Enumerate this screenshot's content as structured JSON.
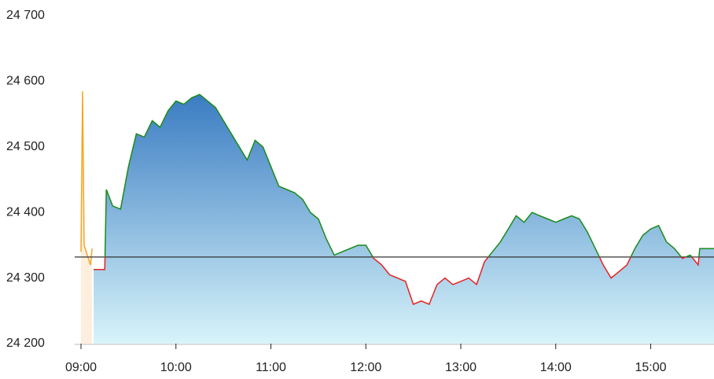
{
  "chart_data": {
    "type": "line",
    "xlim": [
      "09:00",
      "15:40"
    ],
    "xticks": [
      "09:00",
      "10:00",
      "11:00",
      "12:00",
      "13:00",
      "14:00",
      "15:00"
    ],
    "ylim": [
      24200,
      24700
    ],
    "yticks": [
      {
        "value": 24200,
        "label": "24 200"
      },
      {
        "value": 24300,
        "label": "24 300"
      },
      {
        "value": 24400,
        "label": "24 400"
      },
      {
        "value": 24500,
        "label": "24 500"
      },
      {
        "value": 24600,
        "label": "24 600"
      },
      {
        "value": 24700,
        "label": "24 700"
      }
    ],
    "reference_value": 24332,
    "reference_color": "#333333",
    "up_color": "#1a8a1a",
    "down_color": "#e82020",
    "fill_colors": [
      "#3a7cc2",
      "#d8f4fa"
    ],
    "preopen": {
      "color": "#f5a623",
      "fill": "#fdeede",
      "x": [
        "09:00",
        "09:01",
        "09:02",
        "09:04",
        "09:06",
        "09:07"
      ],
      "values": [
        24340,
        24585,
        24350,
        24335,
        24320,
        24345
      ]
    },
    "x": [
      "09:08",
      "09:15",
      "09:16",
      "09:20",
      "09:25",
      "09:30",
      "09:35",
      "09:40",
      "09:45",
      "09:50",
      "09:55",
      "10:00",
      "10:05",
      "10:10",
      "10:15",
      "10:20",
      "10:25",
      "10:30",
      "10:35",
      "10:40",
      "10:45",
      "10:50",
      "10:55",
      "11:00",
      "11:05",
      "11:10",
      "11:15",
      "11:20",
      "11:25",
      "11:30",
      "11:35",
      "11:40",
      "11:45",
      "11:50",
      "11:55",
      "12:00",
      "12:05",
      "12:10",
      "12:15",
      "12:20",
      "12:25",
      "12:30",
      "12:35",
      "12:40",
      "12:45",
      "12:50",
      "12:55",
      "13:00",
      "13:05",
      "13:10",
      "13:15",
      "13:20",
      "13:25",
      "13:30",
      "13:35",
      "13:40",
      "13:45",
      "13:50",
      "13:55",
      "14:00",
      "14:05",
      "14:10",
      "14:15",
      "14:20",
      "14:25",
      "14:30",
      "14:35",
      "14:40",
      "14:45",
      "14:50",
      "14:55",
      "15:00",
      "15:05",
      "15:10",
      "15:15",
      "15:20",
      "15:25",
      "15:30",
      "15:31",
      "15:40"
    ],
    "values": [
      24313,
      24313,
      24435,
      24410,
      24405,
      24470,
      24520,
      24515,
      24540,
      24530,
      24555,
      24570,
      24565,
      24575,
      24580,
      24570,
      24560,
      24540,
      24520,
      24500,
      24480,
      24510,
      24500,
      24470,
      24440,
      24435,
      24430,
      24420,
      24400,
      24390,
      24360,
      24335,
      24340,
      24345,
      24350,
      24350,
      24330,
      24320,
      24305,
      24300,
      24295,
      24260,
      24265,
      24260,
      24290,
      24300,
      24290,
      24295,
      24300,
      24290,
      24325,
      24340,
      24355,
      24375,
      24395,
      24385,
      24400,
      24395,
      24390,
      24385,
      24390,
      24395,
      24390,
      24370,
      24345,
      24320,
      24300,
      24310,
      24320,
      24345,
      24365,
      24375,
      24380,
      24355,
      24345,
      24330,
      24335,
      24320,
      24345,
      24345
    ]
  }
}
